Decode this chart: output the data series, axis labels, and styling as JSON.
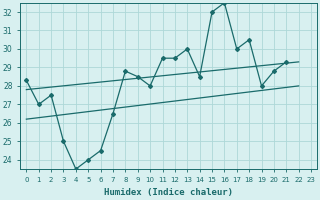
{
  "x": [
    0,
    1,
    2,
    3,
    4,
    5,
    6,
    7,
    8,
    9,
    10,
    11,
    12,
    13,
    14,
    15,
    16,
    17,
    18,
    19,
    20,
    21,
    22,
    23
  ],
  "y_main": [
    28.3,
    27.0,
    27.5,
    25.0,
    23.5,
    24.0,
    24.5,
    26.5,
    28.8,
    28.5,
    28.0,
    29.5,
    29.5,
    30.0,
    28.5,
    32.0,
    32.5,
    30.0,
    30.5,
    28.0,
    28.8,
    29.3,
    null,
    null
  ],
  "y_trend_x": [
    0,
    22
  ],
  "y_trend_y": [
    27.8,
    29.3
  ],
  "y_trend2_x": [
    0,
    22
  ],
  "y_trend2_y": [
    26.2,
    28.0
  ],
  "bg_color": "#d8f0f0",
  "grid_color": "#aed8d8",
  "line_color": "#1a6b6b",
  "xlabel": "Humidex (Indice chaleur)",
  "ylim": [
    23.5,
    32.5
  ],
  "xlim": [
    -0.5,
    23.5
  ],
  "yticks": [
    24,
    25,
    26,
    27,
    28,
    29,
    30,
    31,
    32
  ],
  "xticks": [
    0,
    1,
    2,
    3,
    4,
    5,
    6,
    7,
    8,
    9,
    10,
    11,
    12,
    13,
    14,
    15,
    16,
    17,
    18,
    19,
    20,
    21,
    22,
    23
  ]
}
